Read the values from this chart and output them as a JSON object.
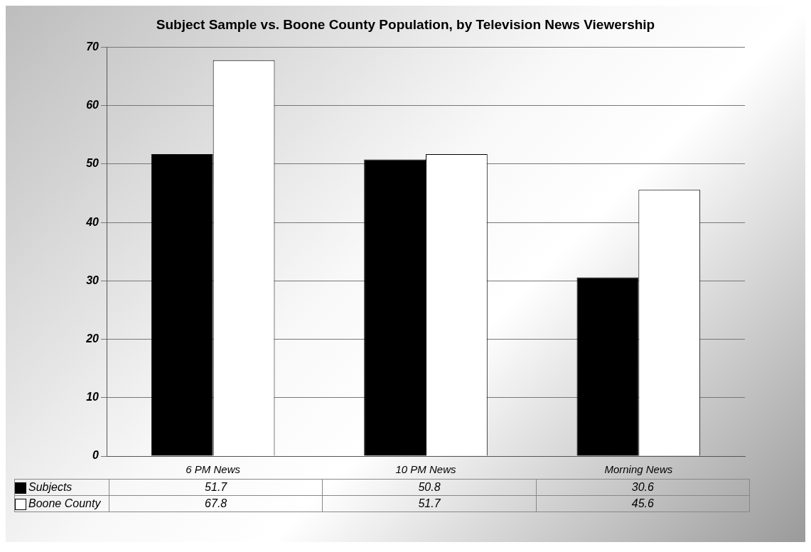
{
  "chart_data": {
    "type": "bar",
    "title": "Subject Sample vs. Boone County Population, by Television News Viewership",
    "categories": [
      "6 PM News",
      "10 PM News",
      "Morning News"
    ],
    "series": [
      {
        "name": "Subjects",
        "color": "#000000",
        "values": [
          51.7,
          50.8,
          30.6
        ]
      },
      {
        "name": "Boone County",
        "color": "#ffffff",
        "values": [
          67.8,
          51.7,
          45.6
        ]
      }
    ],
    "ylim": [
      0,
      70
    ],
    "yticks": [
      0,
      10,
      20,
      30,
      40,
      50,
      60,
      70
    ],
    "grid": "y",
    "legend": "bottom",
    "data_labels": true
  }
}
